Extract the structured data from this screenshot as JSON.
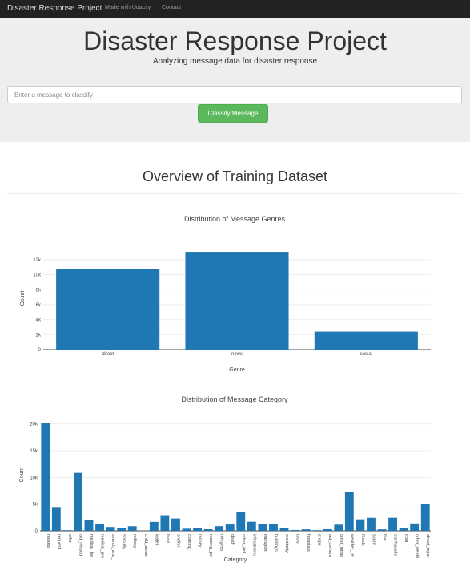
{
  "navbar": {
    "brand": "Disaster Response Project",
    "links": [
      "Made with Udacity",
      "Contact"
    ]
  },
  "header": {
    "title": "Disaster Response Project",
    "subtitle": "Analyzing message data for disaster response"
  },
  "classify": {
    "placeholder": "Enter a message to classify",
    "button_label": "Classify Message"
  },
  "overview": {
    "title": "Overview of Training Dataset"
  },
  "colors": {
    "bar": "#1f77b4",
    "navbar": "#222222",
    "button": "#5cb85c"
  },
  "chart_data": [
    {
      "type": "bar",
      "title": "Distribution of Message Genres",
      "xlabel": "Genre",
      "ylabel": "Count",
      "categories": [
        "direct",
        "news",
        "social"
      ],
      "values": [
        10800,
        13050,
        2400
      ],
      "ylim": [
        0,
        13700
      ],
      "yticks": [
        0,
        2000,
        4000,
        6000,
        8000,
        10000,
        12000
      ],
      "yticklabels": [
        "0",
        "2k",
        "4k",
        "6k",
        "8k",
        "10k",
        "12k"
      ],
      "grid": true
    },
    {
      "type": "bar",
      "title": "Distribution of Message Category",
      "xlabel": "Category",
      "ylabel": "Count",
      "categories": [
        "related",
        "request",
        "offer",
        "aid_related",
        "medical_hel",
        "medical_pro",
        "search_and_",
        "security",
        "military",
        "child_alone",
        "water",
        "food",
        "shelter",
        "clothing",
        "money",
        "missing_pe",
        "refugees",
        "death",
        "other_aid",
        "infrastructu",
        "transport",
        "buildings",
        "electricity",
        "tools",
        "hospitals",
        "shops",
        "aid_centers",
        "other_infras",
        "weather_rel",
        "floods",
        "storm",
        "fire",
        "earthquake",
        "cold",
        "other_weath",
        "direct_repor"
      ],
      "values": [
        20100,
        4450,
        120,
        10850,
        2080,
        1310,
        720,
        470,
        860,
        0,
        1670,
        2920,
        2310,
        400,
        600,
        300,
        870,
        1190,
        3450,
        1700,
        1200,
        1330,
        530,
        160,
        280,
        120,
        310,
        1150,
        7300,
        2150,
        2440,
        280,
        2450,
        530,
        1380,
        5080
      ],
      "ylim": [
        0,
        21000
      ],
      "yticks": [
        0,
        5000,
        10000,
        15000,
        20000
      ],
      "yticklabels": [
        "0",
        "5k",
        "10k",
        "15k",
        "20k"
      ],
      "grid": true
    }
  ]
}
